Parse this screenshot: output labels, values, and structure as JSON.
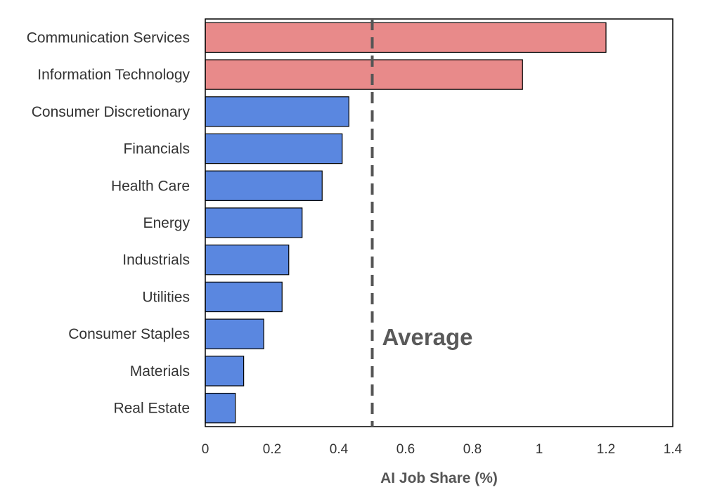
{
  "chart_data": {
    "type": "bar",
    "orientation": "horizontal",
    "categories": [
      "Communication Services",
      "Information Technology",
      "Consumer Discretionary",
      "Financials",
      "Health Care",
      "Energy",
      "Industrials",
      "Utilities",
      "Consumer Staples",
      "Materials",
      "Real Estate"
    ],
    "values": [
      1.2,
      0.95,
      0.43,
      0.41,
      0.35,
      0.29,
      0.25,
      0.23,
      0.175,
      0.115,
      0.09
    ],
    "highlight": [
      true,
      true,
      false,
      false,
      false,
      false,
      false,
      false,
      false,
      false,
      false
    ],
    "xlabel": "AI Job Share (%)",
    "xlim": [
      0,
      1.4
    ],
    "xticks": [
      0,
      0.2,
      0.4,
      0.6,
      0.8,
      1,
      1.2,
      1.4
    ],
    "xtick_labels": [
      "0",
      "0.2",
      "0.4",
      "0.6",
      "0.8",
      "1",
      "1.2",
      "1.4"
    ],
    "reference_line": {
      "value": 0.5,
      "label": "Average",
      "style": "dashed"
    },
    "grid": false,
    "legend": "none",
    "colors": {
      "highlight_bar": "#e88a8a",
      "bar": "#5a87e0",
      "bar_edge": "#000000",
      "reference_line": "#555555",
      "reference_label": "#595959"
    }
  }
}
